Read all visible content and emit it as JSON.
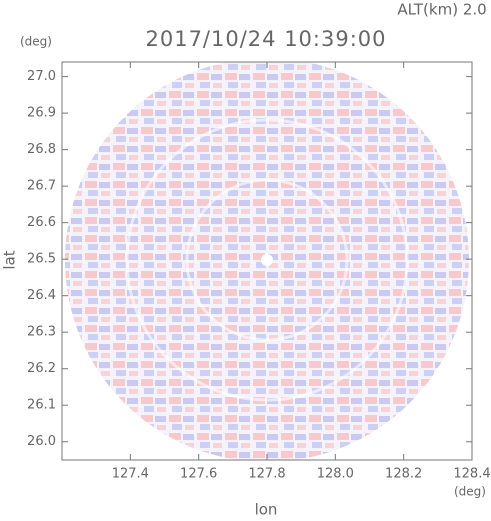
{
  "chart_data": {
    "type": "radar-ppi",
    "title": "2017/10/24 10:39:00",
    "annotation": "ALT(km) 2.0",
    "x_label": "lon",
    "y_label": "lat",
    "x_unit": "(deg)",
    "y_unit": "(deg)",
    "xlim": [
      127.2,
      128.4
    ],
    "ylim": [
      25.95,
      27.04
    ],
    "xticks": [
      127.4,
      127.6,
      127.8,
      {
        "value": 128,
        "label": "128.0"
      },
      128.2,
      128.4
    ],
    "yticks": [
      {
        "value": 26,
        "label": "26.0"
      },
      26.1,
      26.2,
      26.3,
      26.4,
      26.5,
      26.6,
      26.7,
      26.8,
      26.9,
      {
        "value": 27,
        "label": "27.0"
      }
    ]
  }
}
